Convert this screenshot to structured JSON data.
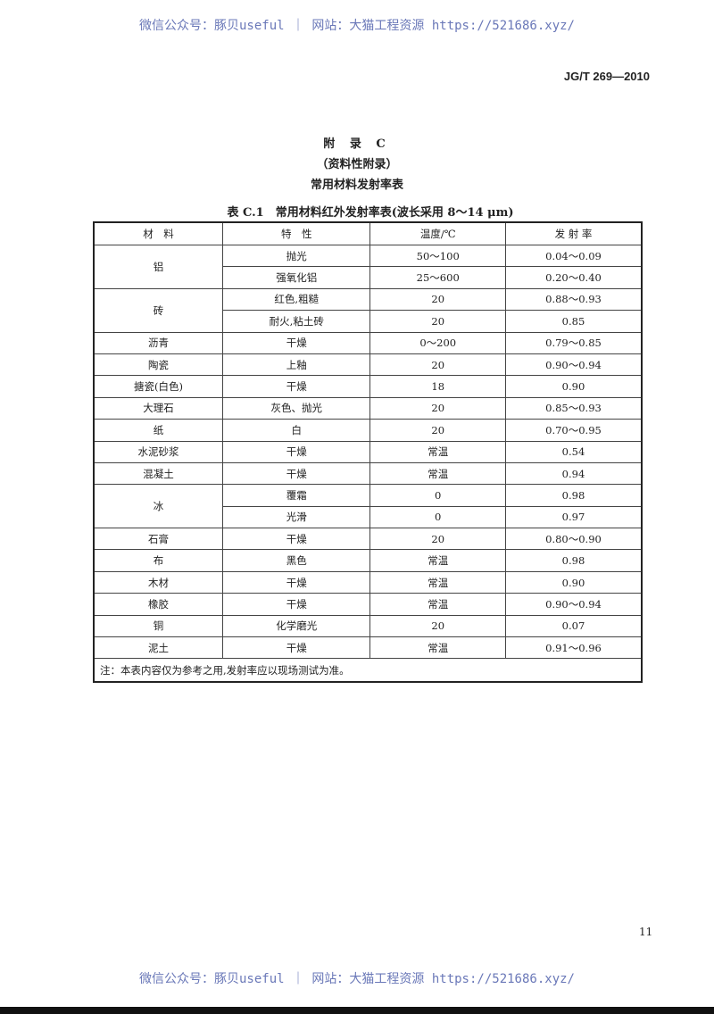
{
  "watermark": "微信公众号：豚贝useful ｜ 网站：大猫工程资源 https://521686.xyz/",
  "standard_no": "JG/T 269—2010",
  "appendix": {
    "title": "附 录 C",
    "subtitle": "（资料性附录）",
    "heading": "常用材料发射率表"
  },
  "table": {
    "caption": "表 C.1　常用材料红外发射率表(波长采用 8～14 μm)",
    "headers": [
      "材　料",
      "特　性",
      "温度/℃",
      "发 射 率"
    ],
    "groups": [
      {
        "material": "铝",
        "rows": [
          [
            "抛光",
            "50～100",
            "0.04～0.09"
          ],
          [
            "强氧化铝",
            "25～600",
            "0.20～0.40"
          ]
        ]
      },
      {
        "material": "砖",
        "rows": [
          [
            "红色,粗糙",
            "20",
            "0.88～0.93"
          ],
          [
            "耐火,粘土砖",
            "20",
            "0.85"
          ]
        ]
      },
      {
        "material": "沥青",
        "rows": [
          [
            "干燥",
            "0～200",
            "0.79～0.85"
          ]
        ]
      },
      {
        "material": "陶瓷",
        "rows": [
          [
            "上釉",
            "20",
            "0.90～0.94"
          ]
        ]
      },
      {
        "material": "搪瓷(白色)",
        "rows": [
          [
            "干燥",
            "18",
            "0.90"
          ]
        ]
      },
      {
        "material": "大理石",
        "rows": [
          [
            "灰色、抛光",
            "20",
            "0.85～0.93"
          ]
        ]
      },
      {
        "material": "纸",
        "rows": [
          [
            "白",
            "20",
            "0.70～0.95"
          ]
        ]
      },
      {
        "material": "水泥砂浆",
        "rows": [
          [
            "干燥",
            "常温",
            "0.54"
          ]
        ]
      },
      {
        "material": "混凝土",
        "rows": [
          [
            "干燥",
            "常温",
            "0.94"
          ]
        ]
      },
      {
        "material": "冰",
        "rows": [
          [
            "覆霜",
            "0",
            "0.98"
          ],
          [
            "光滑",
            "0",
            "0.97"
          ]
        ]
      },
      {
        "material": "石膏",
        "rows": [
          [
            "干燥",
            "20",
            "0.80～0.90"
          ]
        ]
      },
      {
        "material": "布",
        "rows": [
          [
            "黑色",
            "常温",
            "0.98"
          ]
        ]
      },
      {
        "material": "木材",
        "rows": [
          [
            "干燥",
            "常温",
            "0.90"
          ]
        ]
      },
      {
        "material": "橡胶",
        "rows": [
          [
            "干燥",
            "常温",
            "0.90～0.94"
          ]
        ]
      },
      {
        "material": "铜",
        "rows": [
          [
            "化学磨光",
            "20",
            "0.07"
          ]
        ]
      },
      {
        "material": "泥土",
        "rows": [
          [
            "干燥",
            "常温",
            "0.91～0.96"
          ]
        ]
      }
    ],
    "note": "注：本表内容仅为参考之用,发射率应以现场测试为准。"
  },
  "page_number": "11"
}
